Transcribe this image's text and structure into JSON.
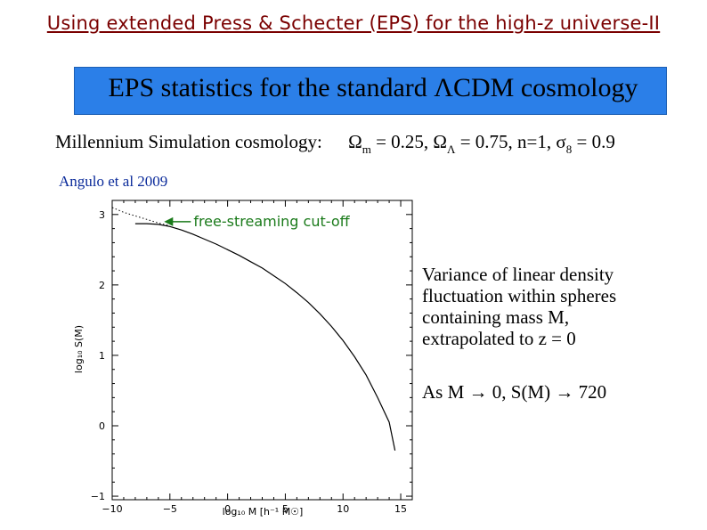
{
  "slide": {
    "title": "Using extended Press & Schecter (EPS) for the high-z universe-II"
  },
  "heading": {
    "text": "EPS statistics for the standard ΛCDM cosmology",
    "bg_color": "#2b7fe8"
  },
  "cosmology": {
    "label": "Millennium Simulation cosmology:",
    "omega_m_symbol": "Ω",
    "omega_m_sub": "m",
    "omega_m_value": "= 0.25,",
    "omega_l_symbol": "Ω",
    "omega_l_sub": "Λ",
    "omega_l_value": "= 0.75, n=1,",
    "sigma_symbol": "σ",
    "sigma_sub": "8",
    "sigma_value": "= 0.9"
  },
  "citation": "Angulo et al 2009",
  "description": {
    "lines": [
      "Variance of linear density",
      "fluctuation within spheres",
      "containing mass M,",
      "extrapolated to z = 0"
    ],
    "limit": "As M → 0,  S(M) → 720"
  },
  "chart_data": {
    "type": "line",
    "xlabel": "log₁₀ M [h⁻¹ M☉]",
    "ylabel": "log₁₀ S(M)",
    "xlim": [
      -10,
      16
    ],
    "ylim": [
      -1.05,
      3.2
    ],
    "xticks": [
      -10,
      -5,
      0,
      5,
      10,
      15
    ],
    "yticks": [
      -1,
      0,
      1,
      2,
      3
    ],
    "grid": false,
    "annotation": {
      "text": "free-streaming cut-off",
      "color": "#1a7a1a",
      "points_to": [
        -5.5,
        2.86
      ]
    },
    "series": [
      {
        "style": "solid",
        "x": [
          -8,
          -7,
          -6,
          -5,
          -4,
          -3,
          -2,
          -1,
          0,
          1,
          2,
          3,
          4,
          5,
          6,
          7,
          8,
          9,
          10,
          11,
          12,
          13,
          14,
          14.5
        ],
        "y": [
          2.87,
          2.87,
          2.86,
          2.83,
          2.78,
          2.72,
          2.65,
          2.58,
          2.5,
          2.42,
          2.33,
          2.24,
          2.13,
          2.02,
          1.89,
          1.75,
          1.59,
          1.41,
          1.21,
          0.98,
          0.72,
          0.4,
          0.05,
          -0.35
        ]
      },
      {
        "style": "dotted",
        "x": [
          -10,
          -9,
          -8,
          -7,
          -6,
          -5
        ],
        "y": [
          3.1,
          3.03,
          2.98,
          2.93,
          2.88,
          2.84
        ]
      }
    ]
  }
}
